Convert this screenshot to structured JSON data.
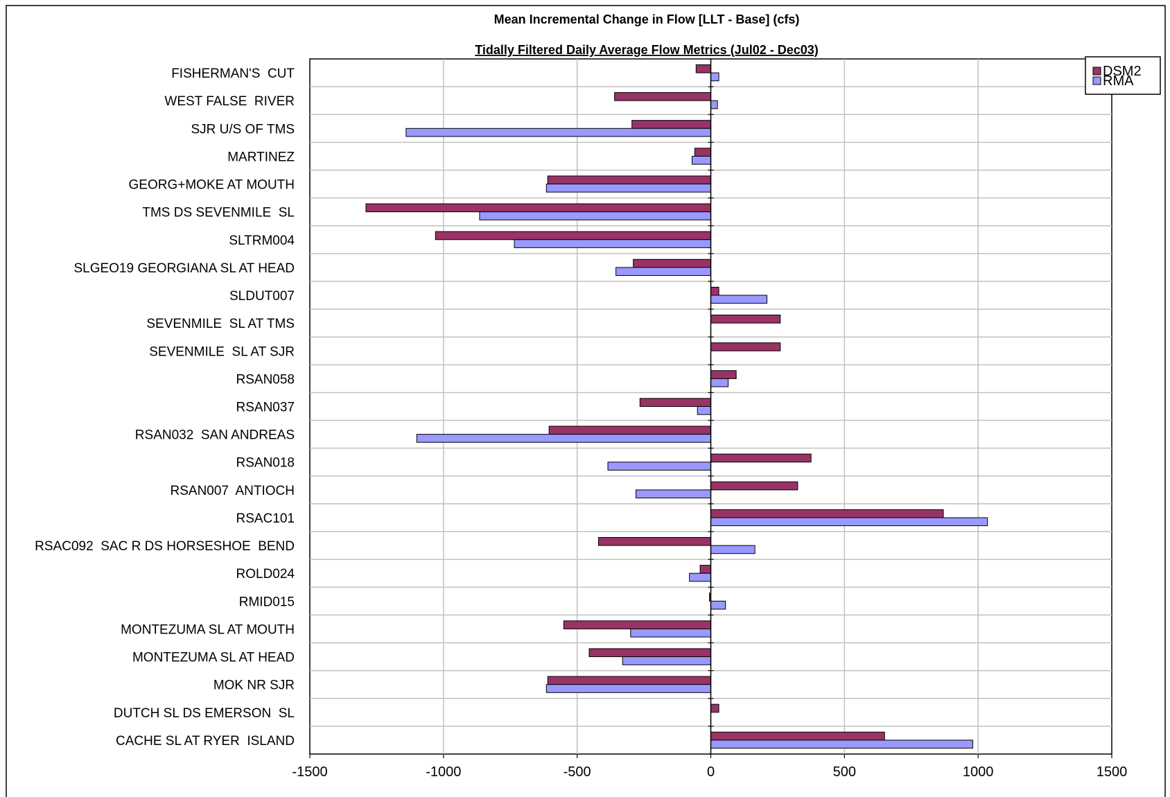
{
  "chart_data": {
    "type": "bar",
    "orientation": "horizontal",
    "title": "Mean Incremental  Change in Flow [LLT - Base] (cfs)",
    "subtitle": "Tidally Filtered Daily Average Flow Metrics (Jul02 - Dec03)",
    "xlabel": "",
    "ylabel": "",
    "xlim": [
      -1500,
      1500
    ],
    "x_ticks": [
      -1500,
      -1000,
      -500,
      0,
      500,
      1000,
      1500
    ],
    "x_tick_labels": [
      "-1500",
      "-1000",
      "-500",
      "0",
      "500",
      "1000",
      "1500"
    ],
    "grid": true,
    "legend_position": "top-right",
    "categories": [
      "FISHERMAN'S  CUT",
      "WEST FALSE  RIVER",
      "SJR U/S OF TMS",
      "MARTINEZ",
      "GEORG+MOKE AT MOUTH",
      "TMS DS SEVENMILE  SL",
      "SLTRM004",
      "SLGEO19 GEORGIANA SL AT HEAD",
      "SLDUT007",
      "SEVENMILE  SL AT TMS",
      "SEVENMILE  SL AT SJR",
      "RSAN058",
      "RSAN037",
      "RSAN032  SAN ANDREAS",
      "RSAN018",
      "RSAN007  ANTIOCH",
      "RSAC101",
      "RSAC092  SAC R DS HORSESHOE  BEND",
      "ROLD024",
      "RMID015",
      "MONTEZUMA SL AT MOUTH",
      "MONTEZUMA SL AT HEAD",
      "MOK NR SJR",
      "DUTCH SL DS EMERSON  SL",
      "CACHE SL AT RYER  ISLAND"
    ],
    "series": [
      {
        "name": "DSM2",
        "color": "#993366",
        "values": [
          -55,
          -360,
          -295,
          -60,
          -610,
          -1290,
          -1030,
          -290,
          30,
          260,
          260,
          95,
          -265,
          -605,
          375,
          325,
          870,
          -420,
          -40,
          -5,
          -550,
          -455,
          -610,
          30,
          650
        ]
      },
      {
        "name": "RMA",
        "color": "#9999ff",
        "values": [
          30,
          25,
          -1140,
          -70,
          -615,
          -865,
          -735,
          -355,
          210,
          0,
          0,
          65,
          -50,
          -1100,
          -385,
          -280,
          1035,
          165,
          -80,
          55,
          -300,
          -330,
          -615,
          0,
          980
        ]
      }
    ]
  }
}
